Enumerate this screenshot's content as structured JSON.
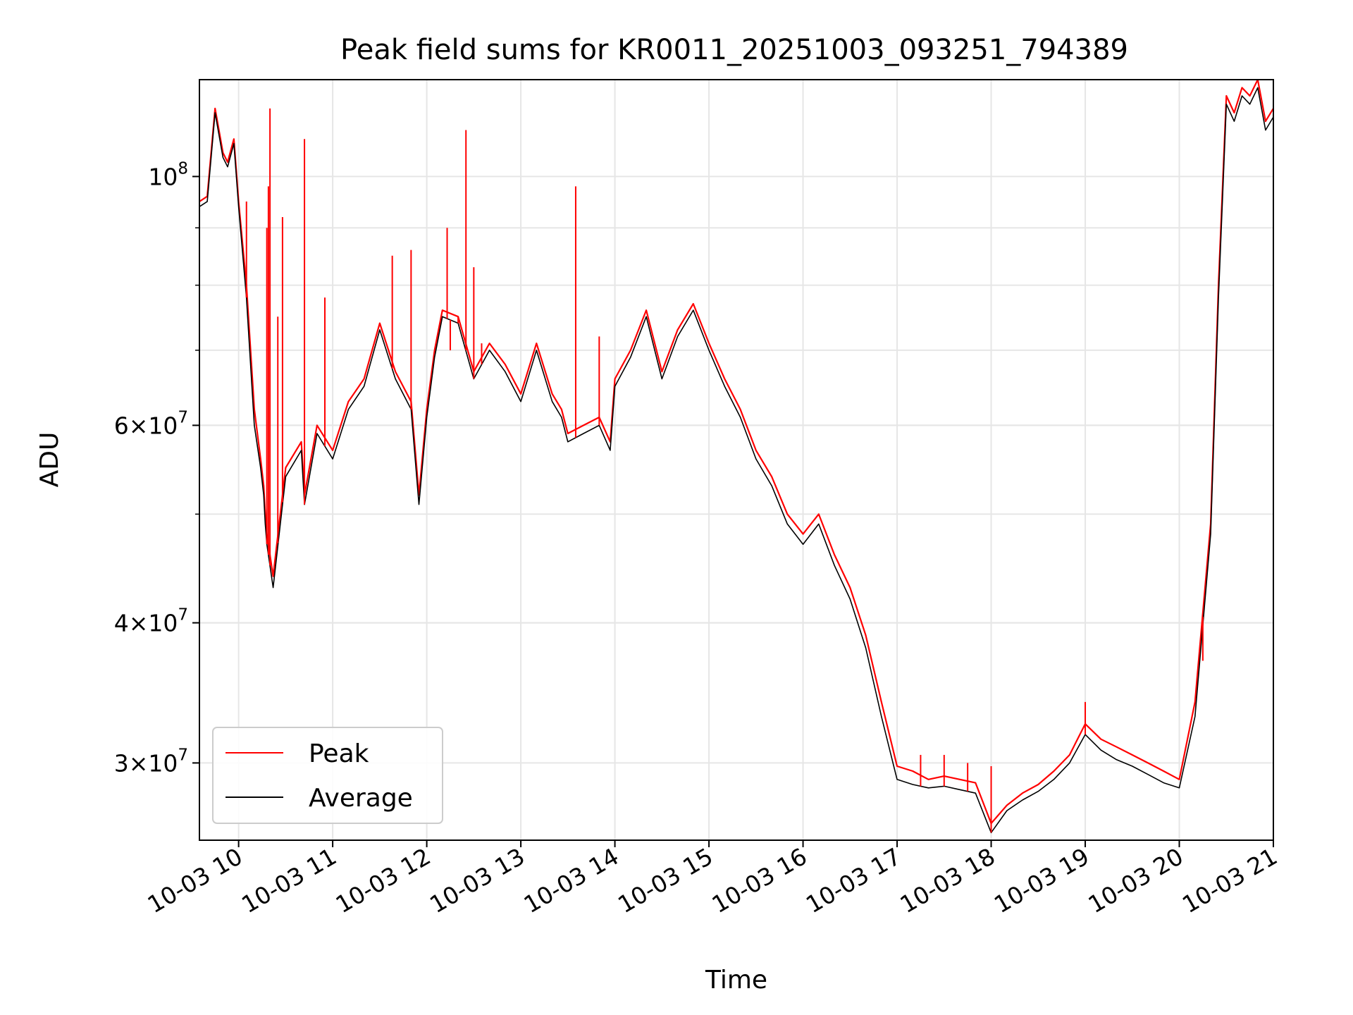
{
  "chart_data": {
    "type": "line",
    "title": "Peak field sums for KR0011_20251003_093251_794389",
    "xlabel": "Time",
    "ylabel": "ADU",
    "yscale": "log",
    "xlim": [
      "10-03 09:35",
      "10-03 21:00"
    ],
    "ylim": [
      25600000,
      122000000
    ],
    "grid": true,
    "legend_position": "lower-left",
    "x_ticks": [
      "10-03 10",
      "10-03 11",
      "10-03 12",
      "10-03 13",
      "10-03 14",
      "10-03 15",
      "10-03 16",
      "10-03 17",
      "10-03 18",
      "10-03 19",
      "10-03 20",
      "10-03 21"
    ],
    "y_ticks": [
      {
        "value": 30000000,
        "mantissa": "3",
        "exponent": "7"
      },
      {
        "value": 40000000,
        "mantissa": "4",
        "exponent": "7"
      },
      {
        "value": 60000000,
        "mantissa": "6",
        "exponent": "7"
      },
      {
        "value": 100000000,
        "mantissa": "",
        "exponent": "8"
      }
    ],
    "series": [
      {
        "name": "Peak",
        "color": "#ff0000",
        "x": [
          "09:35",
          "09:40",
          "09:45",
          "09:50",
          "09:53",
          "09:57",
          "10:00",
          "10:05",
          "10:10",
          "10:14",
          "10:16",
          "10:17",
          "10:18",
          "10:22",
          "10:30",
          "10:40",
          "10:42",
          "10:50",
          "11:00",
          "11:10",
          "11:20",
          "11:30",
          "11:40",
          "11:50",
          "11:55",
          "12:00",
          "12:05",
          "12:10",
          "12:20",
          "12:30",
          "12:40",
          "12:50",
          "13:00",
          "13:10",
          "13:20",
          "13:26",
          "13:30",
          "13:40",
          "13:50",
          "13:57",
          "14:00",
          "14:10",
          "14:20",
          "14:30",
          "14:40",
          "14:50",
          "15:00",
          "15:10",
          "15:20",
          "15:30",
          "15:40",
          "15:50",
          "16:00",
          "16:10",
          "16:20",
          "16:30",
          "16:40",
          "16:50",
          "17:00",
          "17:10",
          "17:20",
          "17:30",
          "17:40",
          "17:50",
          "18:00",
          "18:10",
          "18:20",
          "18:30",
          "18:40",
          "18:50",
          "19:00",
          "19:10",
          "19:20",
          "19:30",
          "19:40",
          "19:50",
          "20:00",
          "20:10",
          "20:20",
          "20:25",
          "20:30",
          "20:35",
          "20:40",
          "20:45",
          "20:50",
          "20:55",
          "21:00"
        ],
        "values": [
          95000000,
          96000000,
          115000000,
          105000000,
          103000000,
          108000000,
          95000000,
          80000000,
          62000000,
          56000000,
          53000000,
          50000000,
          48000000,
          44000000,
          55000000,
          58000000,
          52000000,
          60000000,
          57000000,
          63000000,
          66000000,
          74000000,
          67000000,
          63000000,
          52000000,
          62000000,
          70000000,
          76000000,
          75000000,
          67000000,
          71000000,
          68000000,
          64000000,
          71000000,
          64000000,
          62000000,
          59000000,
          60000000,
          61000000,
          58000000,
          66000000,
          70000000,
          76000000,
          67000000,
          73000000,
          77000000,
          71000000,
          66000000,
          62000000,
          57000000,
          54000000,
          50000000,
          48000000,
          50000000,
          46000000,
          43000000,
          39000000,
          34000000,
          29800000,
          29500000,
          29000000,
          29200000,
          29000000,
          28800000,
          26500000,
          27500000,
          28200000,
          28700000,
          29500000,
          30500000,
          32500000,
          31500000,
          31000000,
          30500000,
          30000000,
          29500000,
          29000000,
          34000000,
          49000000,
          80000000,
          118000000,
          114000000,
          120000000,
          118000000,
          122000000,
          112000000,
          115000000
        ]
      },
      {
        "name": "Average",
        "color": "#000000",
        "x": [
          "09:35",
          "09:40",
          "09:45",
          "09:50",
          "09:53",
          "09:57",
          "10:00",
          "10:05",
          "10:10",
          "10:14",
          "10:16",
          "10:17",
          "10:18",
          "10:22",
          "10:30",
          "10:40",
          "10:42",
          "10:50",
          "11:00",
          "11:10",
          "11:20",
          "11:30",
          "11:40",
          "11:50",
          "11:55",
          "12:00",
          "12:05",
          "12:10",
          "12:20",
          "12:30",
          "12:40",
          "12:50",
          "13:00",
          "13:10",
          "13:20",
          "13:26",
          "13:30",
          "13:40",
          "13:50",
          "13:57",
          "14:00",
          "14:10",
          "14:20",
          "14:30",
          "14:40",
          "14:50",
          "15:00",
          "15:10",
          "15:20",
          "15:30",
          "15:40",
          "15:50",
          "16:00",
          "16:10",
          "16:20",
          "16:30",
          "16:40",
          "16:50",
          "17:00",
          "17:10",
          "17:20",
          "17:30",
          "17:40",
          "17:50",
          "18:00",
          "18:10",
          "18:20",
          "18:30",
          "18:40",
          "18:50",
          "19:00",
          "19:10",
          "19:20",
          "19:30",
          "19:40",
          "19:50",
          "20:00",
          "20:10",
          "20:20",
          "20:25",
          "20:30",
          "20:35",
          "20:40",
          "20:45",
          "20:50",
          "20:55",
          "21:00"
        ],
        "values": [
          94000000,
          95000000,
          114000000,
          104000000,
          102000000,
          107000000,
          94000000,
          78000000,
          60000000,
          55000000,
          52000000,
          49000000,
          47000000,
          43000000,
          54000000,
          57000000,
          51000000,
          59000000,
          56000000,
          62000000,
          65000000,
          73000000,
          66000000,
          62000000,
          51000000,
          61000000,
          69000000,
          75000000,
          74000000,
          66000000,
          70000000,
          67000000,
          63000000,
          70000000,
          63000000,
          61000000,
          58000000,
          59000000,
          60000000,
          57000000,
          65000000,
          69000000,
          75000000,
          66000000,
          72000000,
          76000000,
          70000000,
          65000000,
          61000000,
          56000000,
          53000000,
          49000000,
          47000000,
          49000000,
          45000000,
          42000000,
          38000000,
          33000000,
          29000000,
          28700000,
          28500000,
          28600000,
          28400000,
          28200000,
          26000000,
          27200000,
          27800000,
          28300000,
          29000000,
          30000000,
          31800000,
          30800000,
          30200000,
          29800000,
          29300000,
          28800000,
          28500000,
          33000000,
          48000000,
          78000000,
          116000000,
          112000000,
          118000000,
          116000000,
          120000000,
          110000000,
          113000000
        ]
      }
    ],
    "spikes": {
      "x": [
        "10:05",
        "10:18",
        "10:19",
        "10:20",
        "10:25",
        "10:28",
        "10:42",
        "10:55",
        "11:38",
        "11:50",
        "12:13",
        "12:15",
        "12:20",
        "12:25",
        "12:30",
        "12:35",
        "13:35",
        "13:50",
        "17:15",
        "17:30",
        "17:45",
        "18:00",
        "19:00",
        "20:15"
      ],
      "values": [
        95000000,
        90000000,
        98000000,
        115000000,
        75000000,
        92000000,
        108000000,
        78000000,
        85000000,
        86000000,
        90000000,
        70000000,
        75000000,
        110000000,
        83000000,
        71000000,
        98000000,
        72000000,
        30500000,
        30500000,
        30000000,
        29800000,
        34000000,
        37000000
      ]
    }
  }
}
